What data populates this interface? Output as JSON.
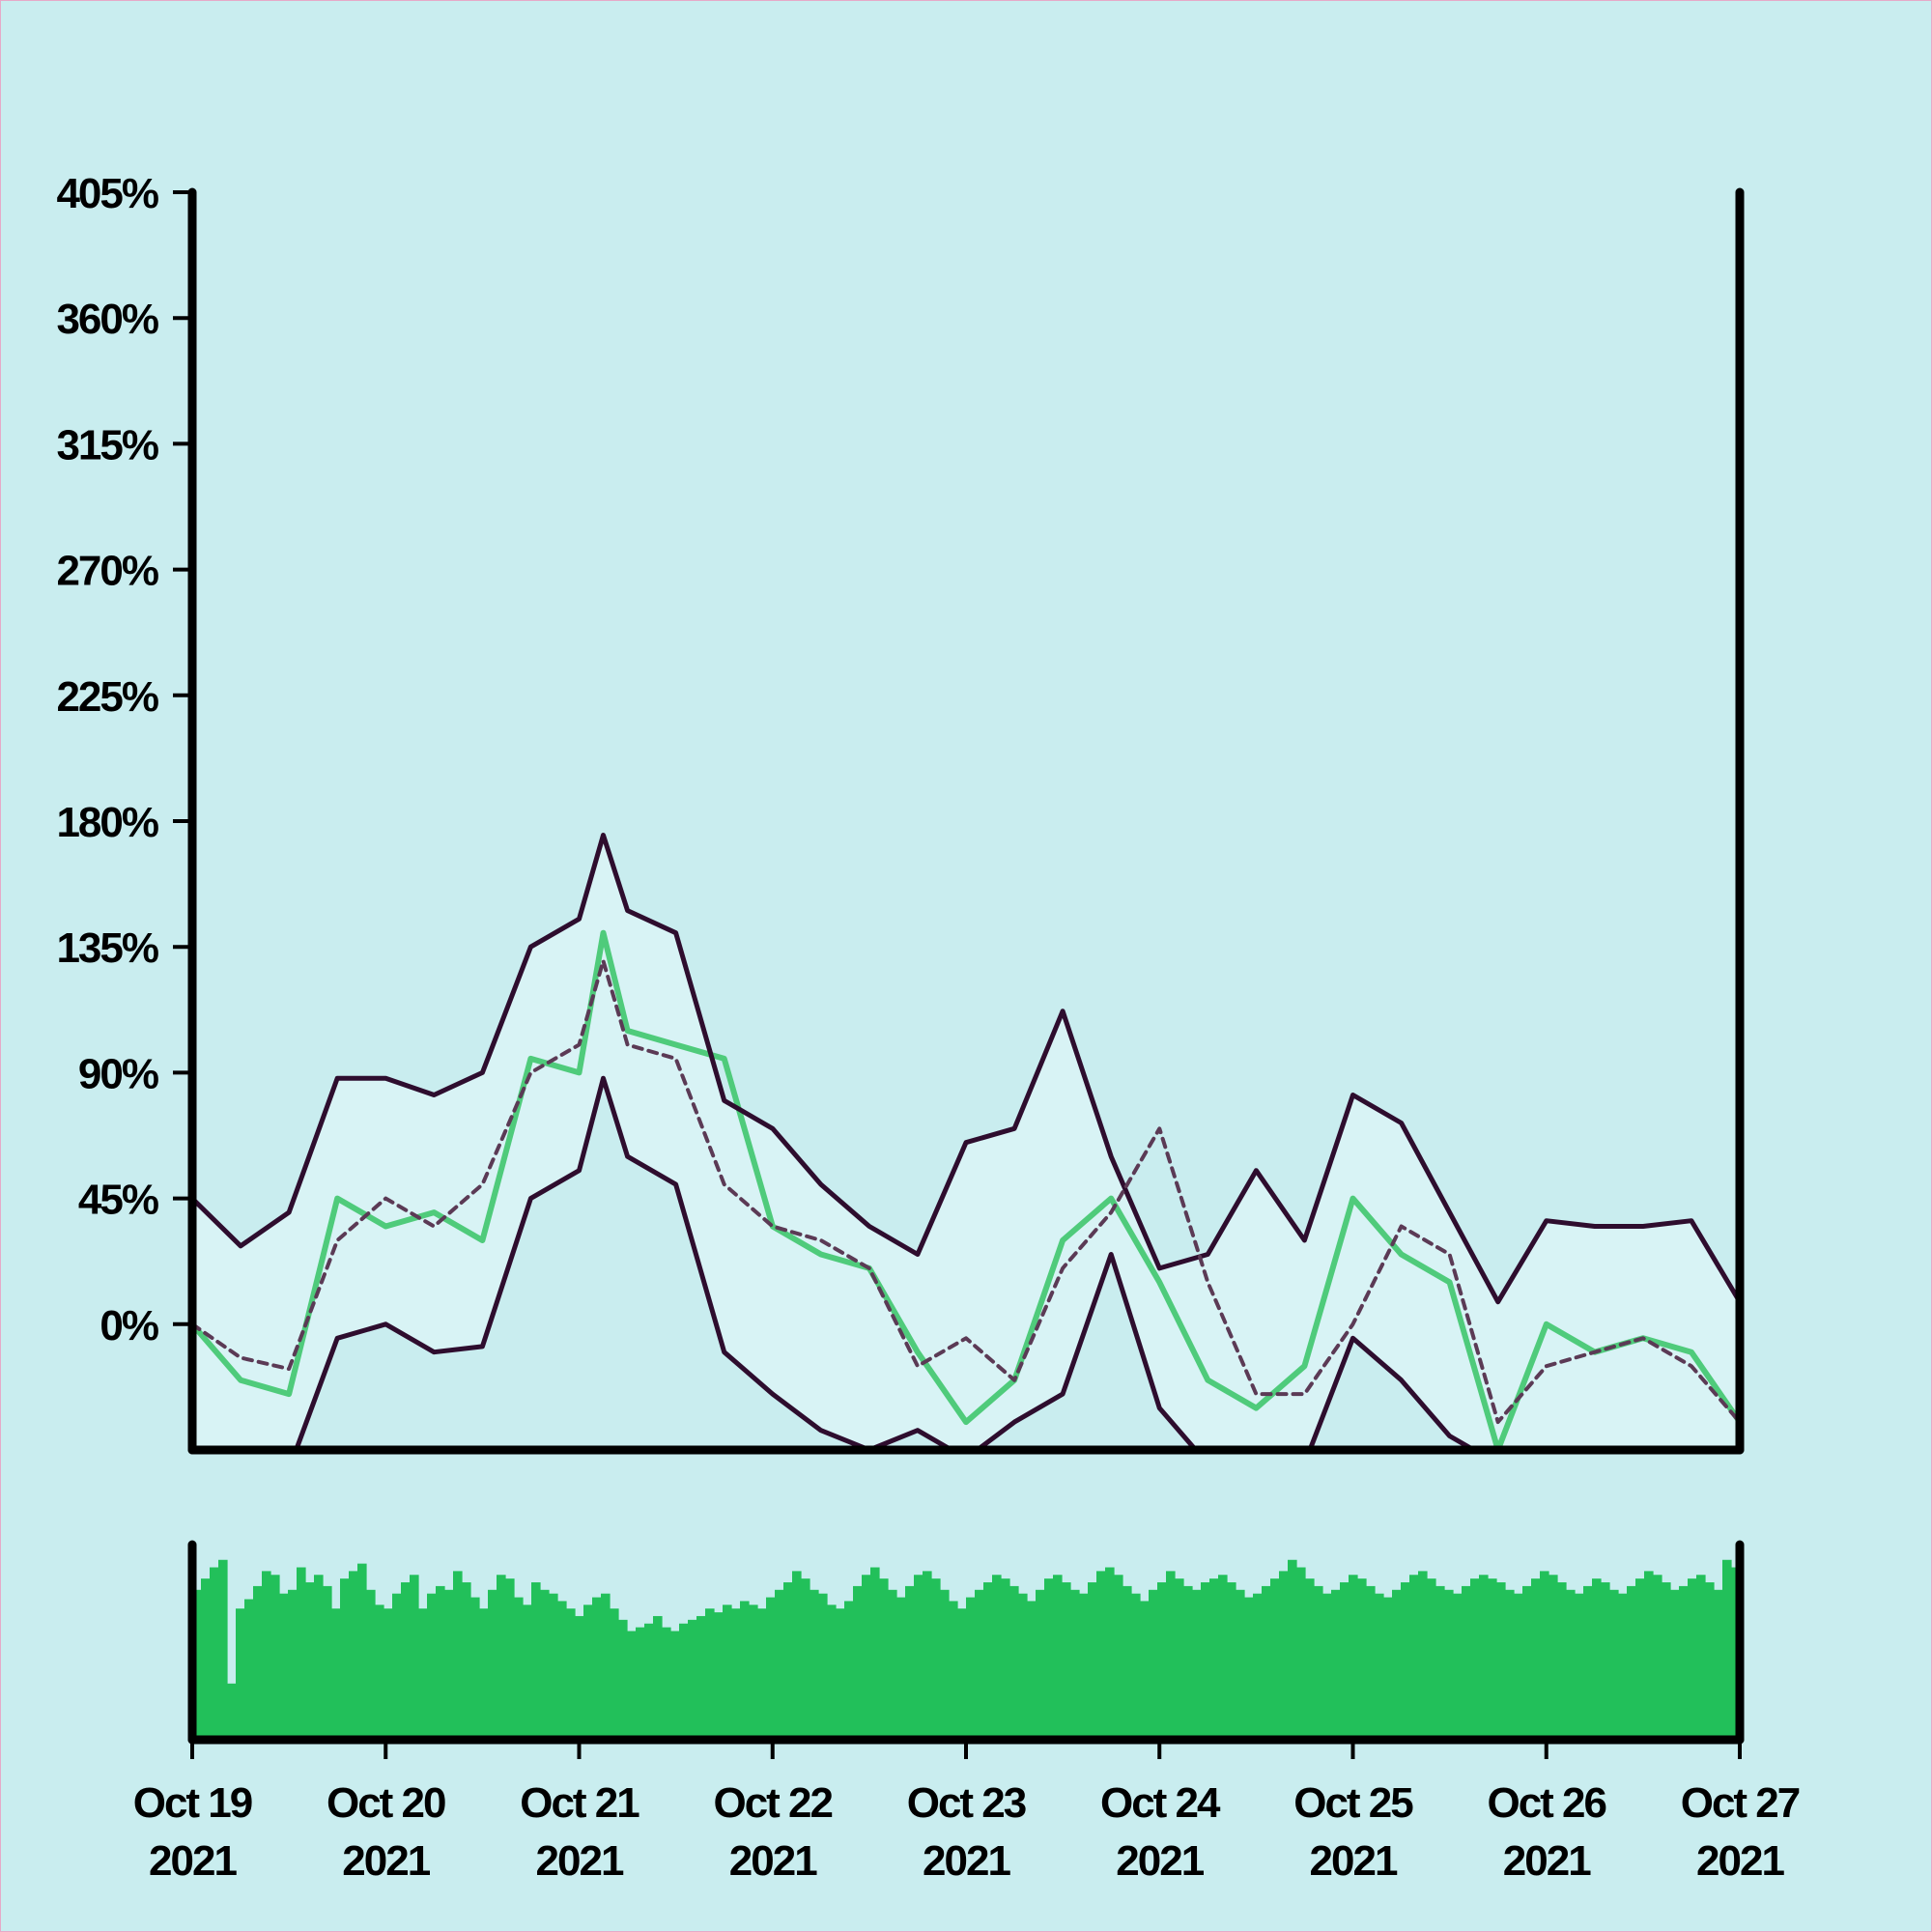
{
  "chart_data": {
    "type": "line",
    "title": "",
    "xlabel": "",
    "ylabel": "",
    "x_ticks": [
      {
        "date": "2021-10-19",
        "line1": "Oct 19",
        "line2": "2021"
      },
      {
        "date": "2021-10-20",
        "line1": "Oct 20",
        "line2": "2021"
      },
      {
        "date": "2021-10-21",
        "line1": "Oct 21",
        "line2": "2021"
      },
      {
        "date": "2021-10-22",
        "line1": "Oct 22",
        "line2": "2021"
      },
      {
        "date": "2021-10-23",
        "line1": "Oct 23",
        "line2": "2021"
      },
      {
        "date": "2021-10-24",
        "line1": "Oct 24",
        "line2": "2021"
      },
      {
        "date": "2021-10-25",
        "line1": "Oct 25",
        "line2": "2021"
      },
      {
        "date": "2021-10-26",
        "line1": "Oct 26",
        "line2": "2021"
      },
      {
        "date": "2021-10-27",
        "line1": "Oct 27",
        "line2": "2021"
      }
    ],
    "xlim": [
      "2021-10-19",
      "2021-10-27"
    ],
    "y_ticks": [
      {
        "value": 0,
        "label": "0%"
      },
      {
        "value": 45,
        "label": "45%"
      },
      {
        "value": 90,
        "label": "90%"
      },
      {
        "value": 135,
        "label": "135%"
      },
      {
        "value": 180,
        "label": "180%"
      },
      {
        "value": 225,
        "label": "225%"
      },
      {
        "value": 270,
        "label": "270%"
      },
      {
        "value": 315,
        "label": "315%"
      },
      {
        "value": 360,
        "label": "360%"
      },
      {
        "value": 405,
        "label": "405%"
      }
    ],
    "ylim": [
      -45,
      405
    ],
    "grid": false,
    "legend": "none",
    "colors": {
      "background": "#c9edef",
      "band_fill": "#d8f3f5",
      "price_line": "#4fcb7b",
      "band_lines": "#2e0d2e",
      "middle_band": "#5b3a55",
      "volume_bars": "#22c05a",
      "axes": "#000000"
    },
    "series": [
      {
        "role": "price",
        "x": [
          "2021-10-19T00:00",
          "2021-10-19T06:00",
          "2021-10-19T12:00",
          "2021-10-19T18:00",
          "2021-10-20T00:00",
          "2021-10-20T06:00",
          "2021-10-20T12:00",
          "2021-10-20T18:00",
          "2021-10-21T00:00",
          "2021-10-21T03:00",
          "2021-10-21T06:00",
          "2021-10-21T12:00",
          "2021-10-21T18:00",
          "2021-10-22T00:00",
          "2021-10-22T06:00",
          "2021-10-22T12:00",
          "2021-10-22T18:00",
          "2021-10-23T00:00",
          "2021-10-23T06:00",
          "2021-10-23T12:00",
          "2021-10-23T18:00",
          "2021-10-24T00:00",
          "2021-10-24T06:00",
          "2021-10-24T12:00",
          "2021-10-24T18:00",
          "2021-10-25T00:00",
          "2021-10-25T06:00",
          "2021-10-25T12:00",
          "2021-10-25T18:00",
          "2021-10-26T00:00",
          "2021-10-26T06:00",
          "2021-10-26T12:00",
          "2021-10-26T18:00",
          "2021-10-27T00:00"
        ],
        "values": [
          0,
          -20,
          -25,
          45,
          35,
          40,
          30,
          95,
          90,
          140,
          105,
          100,
          95,
          35,
          25,
          20,
          -10,
          -35,
          -20,
          30,
          45,
          15,
          -20,
          -30,
          -15,
          45,
          25,
          15,
          -45,
          0,
          -10,
          -5,
          -10,
          -35
        ]
      },
      {
        "role": "middle-band",
        "x": [
          "2021-10-19T00:00",
          "2021-10-19T06:00",
          "2021-10-19T12:00",
          "2021-10-19T18:00",
          "2021-10-20T00:00",
          "2021-10-20T06:00",
          "2021-10-20T12:00",
          "2021-10-20T18:00",
          "2021-10-21T00:00",
          "2021-10-21T03:00",
          "2021-10-21T06:00",
          "2021-10-21T12:00",
          "2021-10-21T18:00",
          "2021-10-22T00:00",
          "2021-10-22T06:00",
          "2021-10-22T12:00",
          "2021-10-22T18:00",
          "2021-10-23T00:00",
          "2021-10-23T06:00",
          "2021-10-23T12:00",
          "2021-10-23T18:00",
          "2021-10-24T00:00",
          "2021-10-24T06:00",
          "2021-10-24T12:00",
          "2021-10-24T18:00",
          "2021-10-25T00:00",
          "2021-10-25T06:00",
          "2021-10-25T12:00",
          "2021-10-25T18:00",
          "2021-10-26T00:00",
          "2021-10-26T06:00",
          "2021-10-26T12:00",
          "2021-10-26T18:00",
          "2021-10-27T00:00"
        ],
        "values": [
          0,
          -12,
          -16,
          30,
          45,
          35,
          50,
          90,
          100,
          130,
          100,
          95,
          50,
          35,
          30,
          20,
          -15,
          -5,
          -20,
          20,
          40,
          70,
          15,
          -25,
          -25,
          0,
          35,
          25,
          -35,
          -15,
          -10,
          -5,
          -15,
          -35
        ]
      },
      {
        "role": "upper-band",
        "x": [
          "2021-10-19T00:00",
          "2021-10-19T06:00",
          "2021-10-19T12:00",
          "2021-10-19T18:00",
          "2021-10-20T00:00",
          "2021-10-20T06:00",
          "2021-10-20T12:00",
          "2021-10-20T18:00",
          "2021-10-21T00:00",
          "2021-10-21T03:00",
          "2021-10-21T06:00",
          "2021-10-21T12:00",
          "2021-10-21T18:00",
          "2021-10-22T00:00",
          "2021-10-22T06:00",
          "2021-10-22T12:00",
          "2021-10-22T18:00",
          "2021-10-23T00:00",
          "2021-10-23T06:00",
          "2021-10-23T12:00",
          "2021-10-23T18:00",
          "2021-10-24T00:00",
          "2021-10-24T06:00",
          "2021-10-24T12:00",
          "2021-10-24T18:00",
          "2021-10-25T00:00",
          "2021-10-25T06:00",
          "2021-10-25T12:00",
          "2021-10-25T18:00",
          "2021-10-26T00:00",
          "2021-10-26T06:00",
          "2021-10-26T12:00",
          "2021-10-26T18:00",
          "2021-10-27T00:00"
        ],
        "values": [
          45,
          28,
          40,
          88,
          88,
          82,
          90,
          135,
          145,
          175,
          148,
          140,
          80,
          70,
          50,
          35,
          25,
          65,
          70,
          112,
          60,
          20,
          25,
          55,
          30,
          82,
          72,
          40,
          8,
          37,
          35,
          35,
          37,
          8
        ]
      },
      {
        "role": "lower-band",
        "x": [
          "2021-10-19T00:00",
          "2021-10-19T06:00",
          "2021-10-19T12:00",
          "2021-10-19T18:00",
          "2021-10-20T00:00",
          "2021-10-20T06:00",
          "2021-10-20T12:00",
          "2021-10-20T18:00",
          "2021-10-21T00:00",
          "2021-10-21T03:00",
          "2021-10-21T06:00",
          "2021-10-21T12:00",
          "2021-10-21T18:00",
          "2021-10-22T00:00",
          "2021-10-22T06:00",
          "2021-10-22T12:00",
          "2021-10-22T18:00",
          "2021-10-23T00:00",
          "2021-10-23T06:00",
          "2021-10-23T12:00",
          "2021-10-23T18:00",
          "2021-10-24T00:00",
          "2021-10-24T06:00",
          "2021-10-24T12:00",
          "2021-10-24T18:00",
          "2021-10-25T00:00",
          "2021-10-25T06:00",
          "2021-10-25T12:00",
          "2021-10-25T18:00",
          "2021-10-26T00:00",
          "2021-10-26T06:00",
          "2021-10-26T12:00",
          "2021-10-26T18:00",
          "2021-10-27T00:00"
        ],
        "values": [
          -45,
          -50,
          -52,
          -5,
          0,
          -10,
          -8,
          45,
          55,
          88,
          60,
          50,
          -10,
          -25,
          -38,
          -45,
          -38,
          -48,
          -35,
          -25,
          25,
          -30,
          -50,
          -60,
          -50,
          -5,
          -20,
          -40,
          -50,
          -55,
          -55,
          -60,
          -55,
          -58
        ]
      }
    ],
    "volume": {
      "ylim": [
        0,
        100
      ],
      "values": [
        80,
        86,
        92,
        96,
        30,
        70,
        75,
        82,
        90,
        88,
        78,
        80,
        92,
        84,
        88,
        82,
        70,
        86,
        90,
        94,
        80,
        72,
        70,
        78,
        84,
        88,
        70,
        78,
        82,
        80,
        90,
        84,
        76,
        70,
        80,
        88,
        86,
        76,
        72,
        84,
        80,
        78,
        74,
        70,
        66,
        72,
        76,
        78,
        70,
        64,
        58,
        60,
        62,
        66,
        60,
        58,
        62,
        64,
        66,
        70,
        68,
        72,
        70,
        74,
        72,
        70,
        76,
        80,
        84,
        90,
        86,
        80,
        78,
        72,
        70,
        74,
        82,
        88,
        92,
        86,
        80,
        76,
        82,
        88,
        90,
        86,
        80,
        74,
        70,
        76,
        80,
        84,
        88,
        86,
        82,
        78,
        74,
        80,
        86,
        88,
        84,
        80,
        78,
        84,
        90,
        92,
        88,
        82,
        78,
        74,
        80,
        84,
        90,
        86,
        82,
        80,
        84,
        86,
        88,
        84,
        80,
        76,
        78,
        82,
        86,
        90,
        96,
        92,
        86,
        82,
        78,
        80,
        84,
        88,
        86,
        82,
        78,
        76,
        80,
        84,
        88,
        90,
        86,
        82,
        80,
        78,
        82,
        86,
        88,
        86,
        84,
        80,
        78,
        82,
        86,
        90,
        88,
        84,
        80,
        78,
        82,
        86,
        84,
        80,
        78,
        82,
        86,
        90,
        88,
        84,
        80,
        82,
        86,
        88,
        84,
        80,
        96,
        92
      ]
    }
  }
}
